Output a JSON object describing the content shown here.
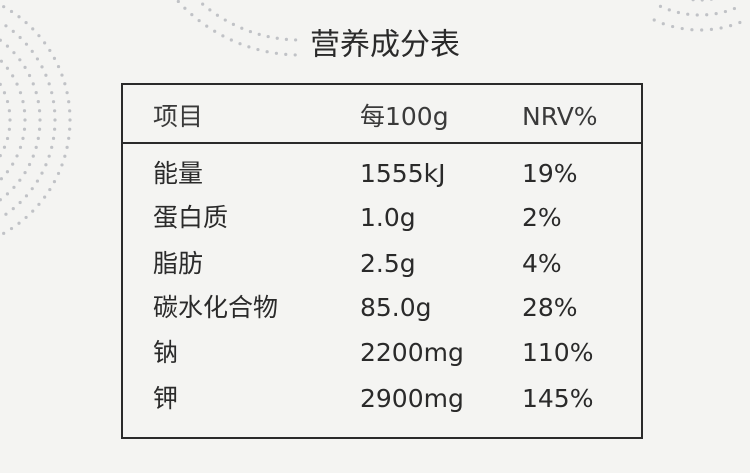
{
  "table": {
    "title": "营养成分表",
    "header": [
      "项目",
      "每100g",
      "NRV%"
    ],
    "rows": [
      [
        "能量",
        "1555kJ",
        "19%"
      ],
      [
        "蛋白质",
        "1.0g",
        "2%"
      ],
      [
        "脂肪",
        "2.5g",
        "4%"
      ],
      [
        "碳水化合物",
        "85.0g",
        "28%"
      ],
      [
        "钠",
        "2200mg",
        "110%"
      ],
      [
        "钾",
        "2900mg",
        "145%"
      ]
    ]
  }
}
